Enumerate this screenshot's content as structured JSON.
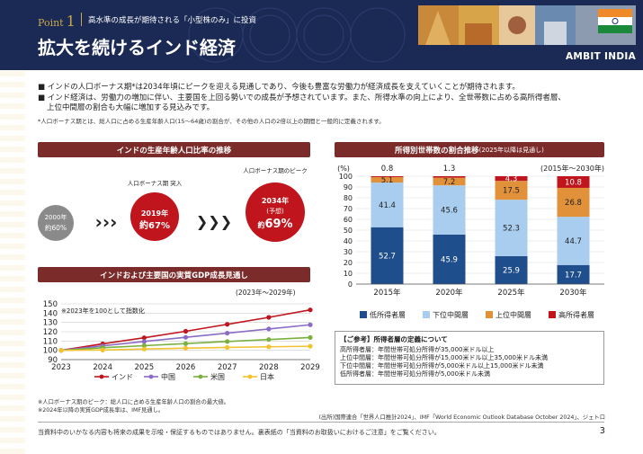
{
  "header": {
    "point_label": "Point",
    "point_number": "1",
    "subtitle": "高水準の成長が期待される「小型株のみ」に投資",
    "title": "拡大を続けるインド経済",
    "brand": "AMBIT INDIA"
  },
  "bullets": [
    "■ インドの人口ボーナス期*は2034年頃にピークを迎える見通しであり、今後も豊富な労働力が経済成長を支えていくことが期待されます。",
    "■ インド経済は、労働力の増加に伴い、主要国を上回る勢いでの成長が予想されています。また、所得水準の向上により、全世帯数に占める高所得者層、",
    "上位中間層の割合も大幅に増加する見込みです。"
  ],
  "bullet_note": "*人口ボーナス期とは、総人口に占める生産年齢人口(15～64歳)の割合が、その他の人口の2倍以上の期間と一般的に定義されます。",
  "population_panel": {
    "title": "インドの生産年齢人口比率の推移",
    "c1_year": "2000年",
    "c1_value": "約60%",
    "c2_tag": "人口ボーナス期 突入",
    "c2_year": "2019年",
    "c2_value": "約67%",
    "c3_tag": "人口ボーナス期のピーク",
    "c3_year": "2034年",
    "c3_sub": "(予想)",
    "c3_value_prefix": "約",
    "c3_value": "69%",
    "arrows_small": "›››",
    "arrows_large": "❯❯❯"
  },
  "gdp_panel": {
    "title": "インドおよび主要国の実質GDP成長見通し",
    "range_label": "(2023年～2029年)",
    "index_note": "※2023年を100として指数化"
  },
  "income_panel": {
    "title": "所得別世帯数の割合推移",
    "title_sub": "(2025年以降は見通し)",
    "unit": "(%)",
    "range_label": "(2015年～2030年)"
  },
  "definitions": {
    "title": "【ご参考】所得者層の定義について",
    "lines": [
      "高所得者層：年間世帯可処分所得が35,000米ドル以上",
      "上位中間層：年間世帯可処分所得が15,000米ドル以上35,000米ドル未満",
      "下位中間層：年間世帯可処分所得が5,000米ドル以上15,000米ドル未満",
      "低所得者層：年間世帯可処分所得が5,000米ドル未満"
    ]
  },
  "footnotes": [
    "※人口ボーナス期のピーク：総人口に占める生産年齢人口の割合の最大値。",
    "※2024年以降の実質GDP成長率は、IMF見通し。"
  ],
  "source": "(出所)国際連合「世界人口推計2024」、IMF「World Economic Outlook Database October 2024」、ジェトロ",
  "disclaimer": "当資料中のいかなる内容も将来の成果を示唆・保証するものではありません。裏表紙の「当資料のお取扱いにおけるご注意」をご覧ください。",
  "page_number": "3",
  "colors": {
    "navy": "#1b2a55",
    "maroon": "#7c2b2b",
    "india": "#c0151d",
    "china": "#8a6cc4",
    "usa": "#7ab03f",
    "japan": "#f2c230",
    "low": "#1f4e8c",
    "lower_mid": "#a9cdef",
    "upper_mid": "#e0913a",
    "high": "#c0151d"
  },
  "chart_data": [
    {
      "type": "line",
      "title": "インドおよび主要国の実質GDP成長見通し",
      "x": [
        2023,
        2024,
        2025,
        2026,
        2027,
        2028,
        2029
      ],
      "y_ticks": [
        90,
        100,
        110,
        120,
        130,
        140,
        150
      ],
      "ylim": [
        90,
        150
      ],
      "grid": true,
      "legend": "bottom",
      "series": [
        {
          "name": "インド",
          "color": "#c0151d",
          "values": [
            100,
            107,
            113.5,
            120.5,
            128,
            135.5,
            143.5
          ]
        },
        {
          "name": "中国",
          "color": "#8a6cc4",
          "values": [
            100,
            104.8,
            109.5,
            114,
            118.5,
            123,
            127.5
          ]
        },
        {
          "name": "米国",
          "color": "#7ab03f",
          "values": [
            100,
            102.8,
            105,
            107.2,
            109.5,
            111.6,
            113.8
          ]
        },
        {
          "name": "日本",
          "color": "#f2c230",
          "values": [
            100,
            100.3,
            101.4,
            102.3,
            103.1,
            103.8,
            104.4
          ]
        }
      ]
    },
    {
      "type": "bar",
      "stacked": true,
      "title": "所得別世帯数の割合推移",
      "categories": [
        "2015年",
        "2020年",
        "2025年",
        "2030年"
      ],
      "y_ticks": [
        0,
        10,
        20,
        30,
        40,
        50,
        60,
        70,
        80,
        90,
        100
      ],
      "ylim": [
        0,
        100
      ],
      "legend": "bottom",
      "series": [
        {
          "name": "低所得者層",
          "color": "#1f4e8c",
          "values": [
            52.7,
            45.9,
            25.9,
            17.7
          ]
        },
        {
          "name": "下位中間層",
          "color": "#a9cdef",
          "values": [
            41.4,
            45.6,
            52.3,
            44.7
          ]
        },
        {
          "name": "上位中間層",
          "color": "#e0913a",
          "values": [
            5.1,
            7.2,
            17.5,
            26.8
          ]
        },
        {
          "name": "高所得者層",
          "color": "#c0151d",
          "values": [
            0.8,
            1.3,
            4.3,
            10.8
          ]
        }
      ]
    }
  ]
}
